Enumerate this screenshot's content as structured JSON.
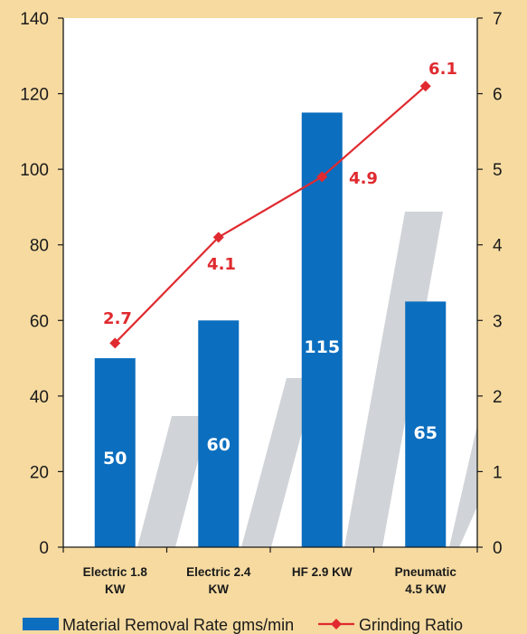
{
  "chart_data": {
    "type": "bar+line",
    "categories": [
      "Electric 1.8\nKW",
      "Electric 2.4\nKW",
      "HF 2.9 KW",
      "Pneumatic\n4.5 KW"
    ],
    "series": [
      {
        "name": "Material Removal Rate gms/min",
        "type": "bar",
        "axis": "left",
        "values": [
          50,
          60,
          115,
          65
        ],
        "labels": [
          "50",
          "60",
          "115",
          "65"
        ],
        "color": "#0b6ebf"
      },
      {
        "name": "Grinding Ratio",
        "type": "line",
        "axis": "right",
        "values": [
          2.7,
          4.1,
          4.9,
          6.1
        ],
        "labels": [
          "2.7",
          "4.1",
          "4.9",
          "6.1"
        ],
        "color": "#e02a2f"
      }
    ],
    "y_left": {
      "min": 0,
      "max": 140,
      "ticks": [
        "0",
        "20",
        "40",
        "60",
        "80",
        "100",
        "120",
        "140"
      ]
    },
    "y_right": {
      "min": 0,
      "max": 7,
      "ticks": [
        "0",
        "1",
        "2",
        "3",
        "4",
        "5",
        "6",
        "7"
      ]
    },
    "legend_position": "bottom",
    "plot_background": "#ffffff",
    "page_background": "#f6daa0"
  }
}
